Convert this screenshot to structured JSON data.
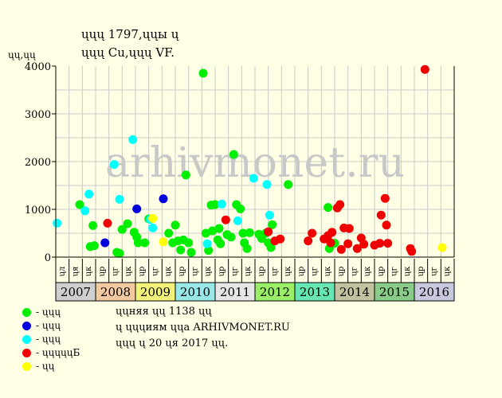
{
  "header": {
    "title_line1": "ųųų 1797,ųųы ų",
    "title_line2": "ųųų Cu,ųųų VF.",
    "y_unit": "ųų,ųų"
  },
  "watermark": "arhivmonet.ru",
  "legend": [
    {
      "label": "- ųųų",
      "color": "#00ee00"
    },
    {
      "label": "- ųųų",
      "color": "#0000dd"
    },
    {
      "label": "- ųųų",
      "color": "#00ffff"
    },
    {
      "label": "- ųųųųųБ",
      "color": "#ee0000"
    },
    {
      "label": "- ųų",
      "color": "#ffff00"
    }
  ],
  "info": {
    "line1": "ųųняя ųų 1138 ųų",
    "line2": "ų ųųųиям ųųа ARHIVMONET.RU",
    "line3": "ųųų ų 20 ųя 2017 ųų."
  },
  "chart_data": {
    "type": "scatter",
    "ylim": [
      0,
      4000
    ],
    "yticks": [
      0,
      1000,
      2000,
      3000,
      4000
    ],
    "grid": true,
    "month_labels": [
      "ųл",
      "ųя",
      "ųк",
      "ųр",
      "ųг",
      "ųк",
      "ųр",
      "ųг",
      "ųк",
      "ųр",
      "ųг",
      "ųк",
      "ųр",
      "ųг",
      "ųк",
      "ųр",
      "ųг",
      "ųк",
      "ųр",
      "ųг",
      "ųк",
      "ųр",
      "ųг",
      "ųк",
      "ųр",
      "ųг",
      "ųк",
      "ųр",
      "ųг",
      "ųк"
    ],
    "years": [
      {
        "label": "2007",
        "color": "#cfcfcf"
      },
      {
        "label": "2008",
        "color": "#f2c9a0"
      },
      {
        "label": "2009",
        "color": "#f2f27a"
      },
      {
        "label": "2010",
        "color": "#99e8e8"
      },
      {
        "label": "2011",
        "color": "#e6e6e6"
      },
      {
        "label": "2012",
        "color": "#99ee66"
      },
      {
        "label": "2013",
        "color": "#66e6b2"
      },
      {
        "label": "2014",
        "color": "#c2c2a0"
      },
      {
        "label": "2015",
        "color": "#88cc88"
      },
      {
        "label": "2016",
        "color": "#c8c8de"
      }
    ],
    "series": [
      {
        "color": "#00ee00",
        "points": [
          [
            1.8,
            1100
          ],
          [
            2.6,
            220
          ],
          [
            2.8,
            660
          ],
          [
            2.9,
            240
          ],
          [
            4.6,
            100
          ],
          [
            4.8,
            80
          ],
          [
            5.0,
            580
          ],
          [
            5.4,
            700
          ],
          [
            5.9,
            520
          ],
          [
            6.1,
            420
          ],
          [
            6.2,
            300
          ],
          [
            6.7,
            300
          ],
          [
            7.0,
            800
          ],
          [
            8.5,
            500
          ],
          [
            8.8,
            300
          ],
          [
            9.0,
            670
          ],
          [
            9.2,
            340
          ],
          [
            9.4,
            150
          ],
          [
            9.6,
            360
          ],
          [
            9.8,
            1720
          ],
          [
            10.0,
            300
          ],
          [
            10.2,
            100
          ],
          [
            11.1,
            3850
          ],
          [
            11.3,
            500
          ],
          [
            11.5,
            140
          ],
          [
            11.7,
            1090
          ],
          [
            11.8,
            550
          ],
          [
            12.0,
            1100
          ],
          [
            12.2,
            360
          ],
          [
            12.3,
            600
          ],
          [
            12.4,
            280
          ],
          [
            12.9,
            470
          ],
          [
            13.2,
            420
          ],
          [
            13.4,
            2150
          ],
          [
            13.6,
            1100
          ],
          [
            13.9,
            1010
          ],
          [
            14.1,
            500
          ],
          [
            14.2,
            300
          ],
          [
            14.4,
            180
          ],
          [
            14.6,
            510
          ],
          [
            15.3,
            480
          ],
          [
            15.5,
            390
          ],
          [
            15.8,
            500
          ],
          [
            16.0,
            300
          ],
          [
            16.2,
            200
          ],
          [
            16.3,
            680
          ],
          [
            17.5,
            1520
          ],
          [
            20.5,
            1040
          ],
          [
            20.6,
            180
          ],
          [
            21.0,
            290
          ]
        ]
      },
      {
        "color": "#0000dd",
        "points": [
          [
            3.7,
            300
          ],
          [
            6.1,
            1010
          ],
          [
            8.1,
            1220
          ]
        ]
      },
      {
        "color": "#00ffff",
        "points": [
          [
            0.1,
            710
          ],
          [
            2.2,
            970
          ],
          [
            2.5,
            1320
          ],
          [
            4.4,
            1940
          ],
          [
            4.8,
            1210
          ],
          [
            5.8,
            2460
          ],
          [
            7.1,
            790
          ],
          [
            7.3,
            610
          ],
          [
            11.4,
            280
          ],
          [
            12.5,
            1110
          ],
          [
            13.7,
            760
          ],
          [
            14.9,
            1650
          ],
          [
            15.9,
            1520
          ],
          [
            16.1,
            880
          ]
        ]
      },
      {
        "color": "#ee0000",
        "points": [
          [
            3.9,
            710
          ],
          [
            12.8,
            780
          ],
          [
            16.0,
            530
          ],
          [
            16.5,
            340
          ],
          [
            16.9,
            380
          ],
          [
            19.0,
            340
          ],
          [
            19.3,
            500
          ],
          [
            20.2,
            380
          ],
          [
            20.5,
            450
          ],
          [
            20.7,
            300
          ],
          [
            20.8,
            520
          ],
          [
            21.2,
            1030
          ],
          [
            21.4,
            1100
          ],
          [
            21.5,
            160
          ],
          [
            21.7,
            610
          ],
          [
            22.0,
            280
          ],
          [
            22.1,
            600
          ],
          [
            22.7,
            180
          ],
          [
            23.0,
            400
          ],
          [
            23.2,
            270
          ],
          [
            24.0,
            250
          ],
          [
            24.4,
            290
          ],
          [
            24.5,
            880
          ],
          [
            24.8,
            1230
          ],
          [
            24.9,
            670
          ],
          [
            25.0,
            290
          ],
          [
            26.7,
            180
          ],
          [
            26.8,
            120
          ],
          [
            27.8,
            3930
          ]
        ]
      },
      {
        "color": "#ffff00",
        "points": [
          [
            7.3,
            810
          ],
          [
            8.1,
            320
          ],
          [
            29.1,
            200
          ]
        ]
      }
    ]
  }
}
